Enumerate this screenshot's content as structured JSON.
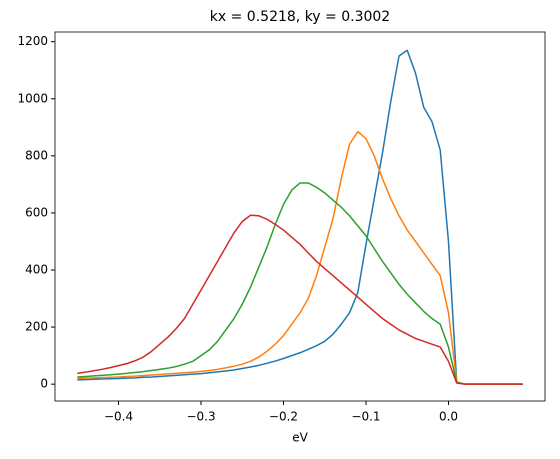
{
  "chart_data": {
    "type": "line",
    "title": "kx = 0.5218, ky = 0.3002",
    "xlabel": "eV",
    "x": [
      -0.45,
      -0.44,
      -0.43,
      -0.42,
      -0.41,
      -0.4,
      -0.39,
      -0.38,
      -0.37,
      -0.36,
      -0.35,
      -0.34,
      -0.33,
      -0.32,
      -0.31,
      -0.3,
      -0.29,
      -0.28,
      -0.27,
      -0.26,
      -0.25,
      -0.24,
      -0.23,
      -0.22,
      -0.21,
      -0.2,
      -0.19,
      -0.18,
      -0.17,
      -0.16,
      -0.15,
      -0.14,
      -0.13,
      -0.12,
      -0.11,
      -0.1,
      -0.09,
      -0.08,
      -0.07,
      -0.06,
      -0.05,
      -0.04,
      -0.03,
      -0.02,
      -0.01,
      0.0,
      0.01,
      0.02,
      0.03,
      0.04,
      0.05,
      0.06,
      0.07,
      0.08,
      0.09
    ],
    "series": [
      {
        "color": "#1f77b4",
        "values": [
          15,
          16,
          17,
          18,
          19,
          20,
          21,
          22,
          24,
          25,
          27,
          29,
          31,
          33,
          35,
          37,
          40,
          43,
          46,
          50,
          55,
          60,
          66,
          73,
          81,
          90,
          100,
          110,
          122,
          135,
          150,
          175,
          210,
          250,
          320,
          490,
          650,
          810,
          990,
          1150,
          1170,
          1090,
          970,
          920,
          820,
          500,
          5,
          0,
          0,
          0,
          0,
          0,
          0,
          0,
          0
        ]
      },
      {
        "color": "#ff7f0e",
        "values": [
          20,
          21,
          22,
          23,
          24,
          25,
          27,
          28,
          30,
          32,
          34,
          36,
          38,
          40,
          42,
          45,
          48,
          52,
          57,
          63,
          70,
          80,
          95,
          115,
          140,
          170,
          210,
          250,
          300,
          380,
          480,
          580,
          720,
          840,
          885,
          860,
          800,
          720,
          650,
          590,
          540,
          500,
          460,
          420,
          380,
          250,
          8,
          0,
          0,
          0,
          0,
          0,
          0,
          0,
          0
        ]
      },
      {
        "color": "#2ca02c",
        "values": [
          25,
          27,
          29,
          31,
          33,
          35,
          38,
          41,
          44,
          48,
          52,
          56,
          62,
          70,
          80,
          100,
          120,
          150,
          190,
          230,
          280,
          340,
          410,
          480,
          560,
          630,
          680,
          705,
          705,
          690,
          670,
          645,
          620,
          590,
          555,
          520,
          475,
          430,
          390,
          350,
          315,
          285,
          255,
          230,
          210,
          130,
          6,
          0,
          0,
          0,
          0,
          0,
          0,
          0,
          0
        ]
      },
      {
        "color": "#d62728",
        "values": [
          38,
          42,
          47,
          52,
          58,
          65,
          72,
          82,
          95,
          115,
          140,
          165,
          195,
          230,
          280,
          330,
          380,
          430,
          480,
          530,
          570,
          592,
          590,
          578,
          560,
          540,
          515,
          490,
          460,
          430,
          405,
          380,
          355,
          330,
          305,
          280,
          255,
          230,
          210,
          190,
          175,
          160,
          150,
          140,
          130,
          80,
          4,
          0,
          0,
          0,
          0,
          0,
          0,
          0,
          0
        ]
      }
    ],
    "xlim": [
      -0.477,
      0.117
    ],
    "ylim": [
      -59,
      1234
    ],
    "xticks": [
      {
        "value": -0.4,
        "label": "−0.4"
      },
      {
        "value": -0.3,
        "label": "−0.3"
      },
      {
        "value": -0.2,
        "label": "−0.2"
      },
      {
        "value": -0.1,
        "label": "−0.1"
      },
      {
        "value": 0,
        "label": "0.0"
      }
    ],
    "yticks": [
      0,
      200,
      400,
      600,
      800,
      1000,
      1200
    ]
  }
}
